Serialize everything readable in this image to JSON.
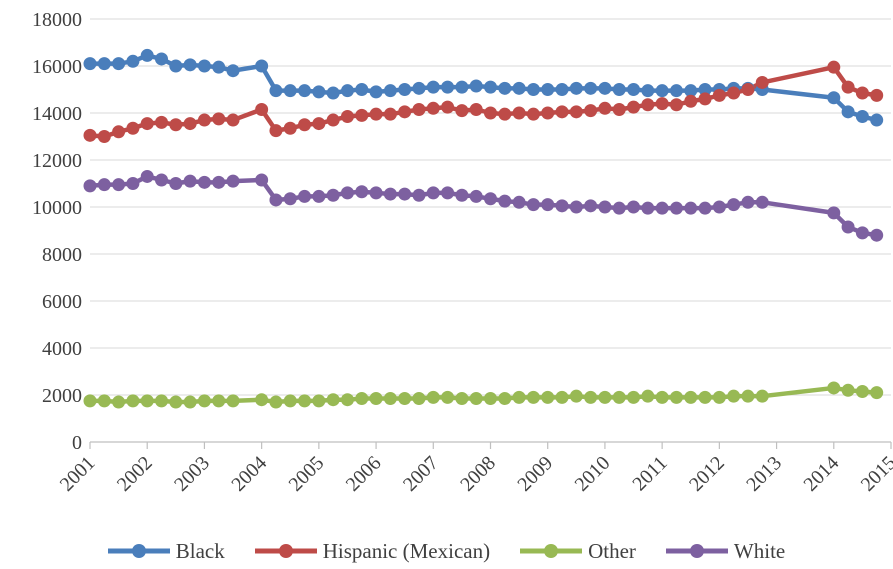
{
  "chart_data": {
    "type": "line",
    "title": "",
    "xlabel": "",
    "ylabel": "",
    "x_tick_labels": [
      "2001",
      "2002",
      "2003",
      "2004",
      "2005",
      "2006",
      "2007",
      "2008",
      "2009",
      "2010",
      "2011",
      "2012",
      "2013",
      "2014",
      "2015"
    ],
    "y_tick_labels": [
      "0",
      "2000",
      "4000",
      "6000",
      "8000",
      "10000",
      "12000",
      "14000",
      "16000",
      "18000"
    ],
    "xlim": [
      2001,
      2015
    ],
    "ylim": [
      0,
      18000
    ],
    "grid": true,
    "legend_position": "bottom",
    "series": [
      {
        "name": "Black",
        "color": "#4a7ebb",
        "points": [
          [
            2001.0,
            16100
          ],
          [
            2001.25,
            16100
          ],
          [
            2001.5,
            16100
          ],
          [
            2001.75,
            16200
          ],
          [
            2002.0,
            16450
          ],
          [
            2002.25,
            16300
          ],
          [
            2002.5,
            16000
          ],
          [
            2002.75,
            16050
          ],
          [
            2003.0,
            16000
          ],
          [
            2003.25,
            15950
          ],
          [
            2003.5,
            15800
          ],
          [
            2004.0,
            16000
          ],
          [
            2004.25,
            14950
          ],
          [
            2004.5,
            14950
          ],
          [
            2004.75,
            14950
          ],
          [
            2005.0,
            14900
          ],
          [
            2005.25,
            14850
          ],
          [
            2005.5,
            14950
          ],
          [
            2005.75,
            15000
          ],
          [
            2006.0,
            14900
          ],
          [
            2006.25,
            14950
          ],
          [
            2006.5,
            15000
          ],
          [
            2006.75,
            15050
          ],
          [
            2007.0,
            15100
          ],
          [
            2007.25,
            15100
          ],
          [
            2007.5,
            15100
          ],
          [
            2007.75,
            15150
          ],
          [
            2008.0,
            15100
          ],
          [
            2008.25,
            15050
          ],
          [
            2008.5,
            15050
          ],
          [
            2008.75,
            15000
          ],
          [
            2009.0,
            15000
          ],
          [
            2009.25,
            15000
          ],
          [
            2009.5,
            15050
          ],
          [
            2009.75,
            15050
          ],
          [
            2010.0,
            15050
          ],
          [
            2010.25,
            15000
          ],
          [
            2010.5,
            15000
          ],
          [
            2010.75,
            14950
          ],
          [
            2011.0,
            14950
          ],
          [
            2011.25,
            14950
          ],
          [
            2011.5,
            14950
          ],
          [
            2011.75,
            15000
          ],
          [
            2012.0,
            15000
          ],
          [
            2012.25,
            15050
          ],
          [
            2012.5,
            15050
          ],
          [
            2012.75,
            15000
          ],
          [
            2014.0,
            14650
          ],
          [
            2014.25,
            14050
          ],
          [
            2014.5,
            13850
          ],
          [
            2014.75,
            13700
          ]
        ]
      },
      {
        "name": "Hispanic (Mexican)",
        "color": "#be4b48",
        "points": [
          [
            2001.0,
            13050
          ],
          [
            2001.25,
            13000
          ],
          [
            2001.5,
            13200
          ],
          [
            2001.75,
            13350
          ],
          [
            2002.0,
            13550
          ],
          [
            2002.25,
            13600
          ],
          [
            2002.5,
            13500
          ],
          [
            2002.75,
            13550
          ],
          [
            2003.0,
            13700
          ],
          [
            2003.25,
            13750
          ],
          [
            2003.5,
            13700
          ],
          [
            2004.0,
            14150
          ],
          [
            2004.25,
            13250
          ],
          [
            2004.5,
            13350
          ],
          [
            2004.75,
            13500
          ],
          [
            2005.0,
            13550
          ],
          [
            2005.25,
            13700
          ],
          [
            2005.5,
            13850
          ],
          [
            2005.75,
            13900
          ],
          [
            2006.0,
            13950
          ],
          [
            2006.25,
            13950
          ],
          [
            2006.5,
            14050
          ],
          [
            2006.75,
            14150
          ],
          [
            2007.0,
            14200
          ],
          [
            2007.25,
            14250
          ],
          [
            2007.5,
            14100
          ],
          [
            2007.75,
            14150
          ],
          [
            2008.0,
            14000
          ],
          [
            2008.25,
            13950
          ],
          [
            2008.5,
            14000
          ],
          [
            2008.75,
            13950
          ],
          [
            2009.0,
            14000
          ],
          [
            2009.25,
            14050
          ],
          [
            2009.5,
            14050
          ],
          [
            2009.75,
            14100
          ],
          [
            2010.0,
            14200
          ],
          [
            2010.25,
            14150
          ],
          [
            2010.5,
            14250
          ],
          [
            2010.75,
            14350
          ],
          [
            2011.0,
            14400
          ],
          [
            2011.25,
            14350
          ],
          [
            2011.5,
            14500
          ],
          [
            2011.75,
            14600
          ],
          [
            2012.0,
            14750
          ],
          [
            2012.25,
            14850
          ],
          [
            2012.5,
            15000
          ],
          [
            2012.75,
            15300
          ],
          [
            2014.0,
            15950
          ],
          [
            2014.25,
            15100
          ],
          [
            2014.5,
            14850
          ],
          [
            2014.75,
            14750
          ]
        ]
      },
      {
        "name": "Other",
        "color": "#98b954",
        "points": [
          [
            2001.0,
            1750
          ],
          [
            2001.25,
            1750
          ],
          [
            2001.5,
            1700
          ],
          [
            2001.75,
            1750
          ],
          [
            2002.0,
            1750
          ],
          [
            2002.25,
            1750
          ],
          [
            2002.5,
            1700
          ],
          [
            2002.75,
            1700
          ],
          [
            2003.0,
            1750
          ],
          [
            2003.25,
            1750
          ],
          [
            2003.5,
            1750
          ],
          [
            2004.0,
            1800
          ],
          [
            2004.25,
            1700
          ],
          [
            2004.5,
            1750
          ],
          [
            2004.75,
            1750
          ],
          [
            2005.0,
            1750
          ],
          [
            2005.25,
            1800
          ],
          [
            2005.5,
            1800
          ],
          [
            2005.75,
            1850
          ],
          [
            2006.0,
            1850
          ],
          [
            2006.25,
            1850
          ],
          [
            2006.5,
            1850
          ],
          [
            2006.75,
            1850
          ],
          [
            2007.0,
            1900
          ],
          [
            2007.25,
            1900
          ],
          [
            2007.5,
            1850
          ],
          [
            2007.75,
            1850
          ],
          [
            2008.0,
            1850
          ],
          [
            2008.25,
            1850
          ],
          [
            2008.5,
            1900
          ],
          [
            2008.75,
            1900
          ],
          [
            2009.0,
            1900
          ],
          [
            2009.25,
            1900
          ],
          [
            2009.5,
            1950
          ],
          [
            2009.75,
            1900
          ],
          [
            2010.0,
            1900
          ],
          [
            2010.25,
            1900
          ],
          [
            2010.5,
            1900
          ],
          [
            2010.75,
            1950
          ],
          [
            2011.0,
            1900
          ],
          [
            2011.25,
            1900
          ],
          [
            2011.5,
            1900
          ],
          [
            2011.75,
            1900
          ],
          [
            2012.0,
            1900
          ],
          [
            2012.25,
            1950
          ],
          [
            2012.5,
            1950
          ],
          [
            2012.75,
            1950
          ],
          [
            2014.0,
            2300
          ],
          [
            2014.25,
            2200
          ],
          [
            2014.5,
            2150
          ],
          [
            2014.75,
            2100
          ]
        ]
      },
      {
        "name": "White",
        "color": "#7d60a0",
        "points": [
          [
            2001.0,
            10900
          ],
          [
            2001.25,
            10950
          ],
          [
            2001.5,
            10950
          ],
          [
            2001.75,
            11000
          ],
          [
            2002.0,
            11300
          ],
          [
            2002.25,
            11150
          ],
          [
            2002.5,
            11000
          ],
          [
            2002.75,
            11100
          ],
          [
            2003.0,
            11050
          ],
          [
            2003.25,
            11050
          ],
          [
            2003.5,
            11100
          ],
          [
            2004.0,
            11150
          ],
          [
            2004.25,
            10300
          ],
          [
            2004.5,
            10350
          ],
          [
            2004.75,
            10450
          ],
          [
            2005.0,
            10450
          ],
          [
            2005.25,
            10500
          ],
          [
            2005.5,
            10600
          ],
          [
            2005.75,
            10650
          ],
          [
            2006.0,
            10600
          ],
          [
            2006.25,
            10550
          ],
          [
            2006.5,
            10550
          ],
          [
            2006.75,
            10500
          ],
          [
            2007.0,
            10600
          ],
          [
            2007.25,
            10600
          ],
          [
            2007.5,
            10500
          ],
          [
            2007.75,
            10450
          ],
          [
            2008.0,
            10350
          ],
          [
            2008.25,
            10250
          ],
          [
            2008.5,
            10200
          ],
          [
            2008.75,
            10100
          ],
          [
            2009.0,
            10100
          ],
          [
            2009.25,
            10050
          ],
          [
            2009.5,
            10000
          ],
          [
            2009.75,
            10050
          ],
          [
            2010.0,
            10000
          ],
          [
            2010.25,
            9950
          ],
          [
            2010.5,
            10000
          ],
          [
            2010.75,
            9950
          ],
          [
            2011.0,
            9950
          ],
          [
            2011.25,
            9950
          ],
          [
            2011.5,
            9950
          ],
          [
            2011.75,
            9950
          ],
          [
            2012.0,
            10000
          ],
          [
            2012.25,
            10100
          ],
          [
            2012.5,
            10200
          ],
          [
            2012.75,
            10200
          ],
          [
            2014.0,
            9750
          ],
          [
            2014.25,
            9150
          ],
          [
            2014.5,
            8900
          ],
          [
            2014.75,
            8800
          ]
        ]
      }
    ]
  }
}
